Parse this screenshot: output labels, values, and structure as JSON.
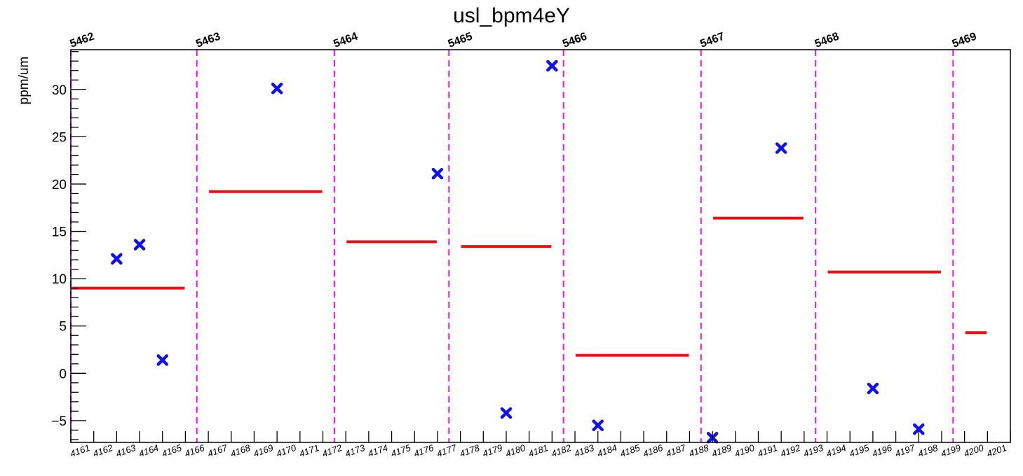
{
  "chart_data": {
    "type": "scatter",
    "title": "usl_bpm4eY",
    "ylabel": "ppm/um",
    "xlabel": "",
    "ylim": [
      -7.3,
      34.2
    ],
    "xlim": [
      4161,
      4202
    ],
    "yticks": [
      -5,
      0,
      5,
      10,
      15,
      20,
      25,
      30
    ],
    "ytick_labels": [
      "−5",
      "0",
      "5",
      "10",
      "15",
      "20",
      "25",
      "30"
    ],
    "x_tick_labels": [
      "4161",
      "4162",
      "4163",
      "4164",
      "4165",
      "4166",
      "4167",
      "4168",
      "4169",
      "4170",
      "4171",
      "4172",
      "4173",
      "4174",
      "4175",
      "4176",
      "4177",
      "4178",
      "4179",
      "4180",
      "4181",
      "4182",
      "4183",
      "4184",
      "4185",
      "4186",
      "4187",
      "4188",
      "4189",
      "4190",
      "4191",
      "4192",
      "4193",
      "4194",
      "4195",
      "4196",
      "4197",
      "4198",
      "4199",
      "4200",
      "4201"
    ],
    "run_boundaries": [
      {
        "label": "5462",
        "x": 4161
      },
      {
        "label": "5463",
        "x": 4166.5
      },
      {
        "label": "5464",
        "x": 4172.5
      },
      {
        "label": "5465",
        "x": 4177.5
      },
      {
        "label": "5466",
        "x": 4182.5
      },
      {
        "label": "5467",
        "x": 4188.5
      },
      {
        "label": "5468",
        "x": 4193.5
      },
      {
        "label": "5469",
        "x": 4199.5
      }
    ],
    "points": [
      {
        "x": 4163,
        "y": 12.1
      },
      {
        "x": 4164,
        "y": 13.6
      },
      {
        "x": 4165,
        "y": 1.4
      },
      {
        "x": 4170,
        "y": 30.1
      },
      {
        "x": 4177,
        "y": 21.1
      },
      {
        "x": 4180,
        "y": -4.2
      },
      {
        "x": 4182,
        "y": 32.5
      },
      {
        "x": 4184,
        "y": -5.5
      },
      {
        "x": 4189,
        "y": -6.8
      },
      {
        "x": 4192,
        "y": 23.8
      },
      {
        "x": 4196,
        "y": -1.6
      },
      {
        "x": 4198,
        "y": -5.9
      }
    ],
    "run_means": [
      {
        "x0": 4161,
        "x1": 4166,
        "y": 9.0
      },
      {
        "x0": 4167,
        "x1": 4172,
        "y": 19.2
      },
      {
        "x0": 4173,
        "x1": 4177,
        "y": 13.9
      },
      {
        "x0": 4178,
        "x1": 4182,
        "y": 13.4
      },
      {
        "x0": 4183,
        "x1": 4188,
        "y": 1.9
      },
      {
        "x0": 4189,
        "x1": 4193,
        "y": 16.4
      },
      {
        "x0": 4194,
        "x1": 4199,
        "y": 10.7
      },
      {
        "x0": 4200,
        "x1": 4201,
        "y": 4.3
      }
    ],
    "colors": {
      "points": "#1010ee",
      "means": "#ee1010",
      "boundaries": "#ee10ee",
      "axis": "#000000"
    },
    "grid": false
  }
}
